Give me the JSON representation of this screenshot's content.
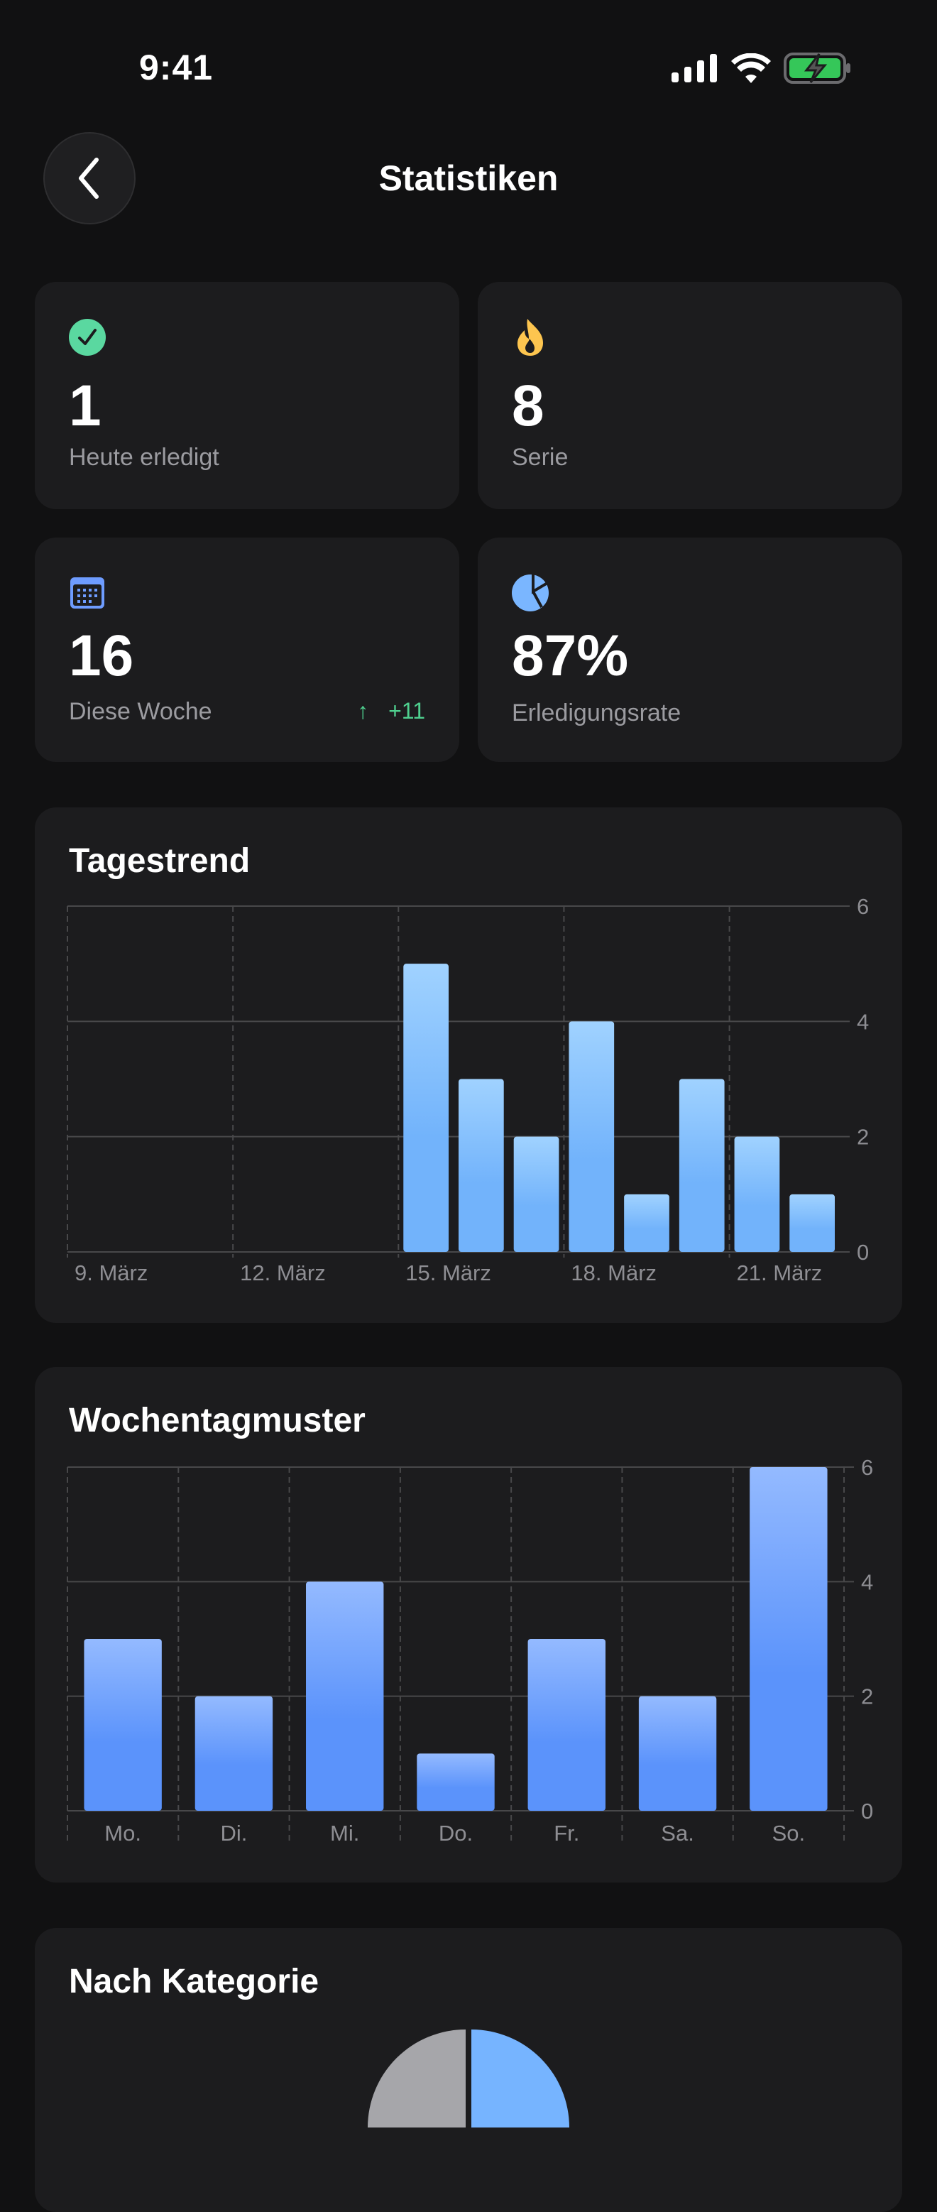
{
  "status_bar": {
    "time": "9:41"
  },
  "header": {
    "title": "Statistiken",
    "back_icon": "chevron-left-icon"
  },
  "stats": [
    {
      "icon": "checkmark-circle-icon",
      "color": "#5ad8a0",
      "value": "1",
      "label": "Heute erledigt"
    },
    {
      "icon": "flame-icon",
      "color": "#fdc54f",
      "value": "8",
      "label": "Serie"
    },
    {
      "icon": "calendar-icon",
      "color": "#6e9cff",
      "value": "16",
      "label": "Diese Woche",
      "delta": "+11",
      "delta_icon": "arrow-up-icon"
    },
    {
      "icon": "pie-chart-icon",
      "color": "#7ab6ff",
      "value": "87%",
      "label": "Erledigungsrate"
    }
  ],
  "sections": {
    "daily": "Tagestrend",
    "weekday": "Wochentagmuster",
    "category": "Nach Kategorie"
  },
  "chart_data": [
    {
      "type": "bar",
      "title": "Tagestrend",
      "x": [
        "15. März",
        "16. März",
        "17. März",
        "18. März",
        "19. März",
        "20. März",
        "21. März",
        "22. März"
      ],
      "values": [
        5,
        3,
        2,
        4,
        1,
        3,
        2,
        1
      ],
      "x_domain": [
        "9. März",
        "22. März"
      ],
      "x_tick_labels": [
        "9. März",
        "12. März",
        "15. März",
        "18. März",
        "21. März"
      ],
      "y_ticks": [
        "0",
        "2",
        "4",
        "6"
      ],
      "ylim": [
        0,
        6
      ],
      "grid": true,
      "colors": [
        "#a0d2ff",
        "#72b3fb"
      ]
    },
    {
      "type": "bar",
      "title": "Wochentagmuster",
      "categories": [
        "Mo.",
        "Di.",
        "Mi.",
        "Do.",
        "Fr.",
        "Sa.",
        "So."
      ],
      "values": [
        3,
        2,
        4,
        1,
        3,
        2,
        6
      ],
      "y_ticks": [
        "0",
        "2",
        "4",
        "6"
      ],
      "ylim": [
        0,
        6
      ],
      "grid": true,
      "colors": [
        "#94baff",
        "#5b93fb"
      ]
    }
  ]
}
